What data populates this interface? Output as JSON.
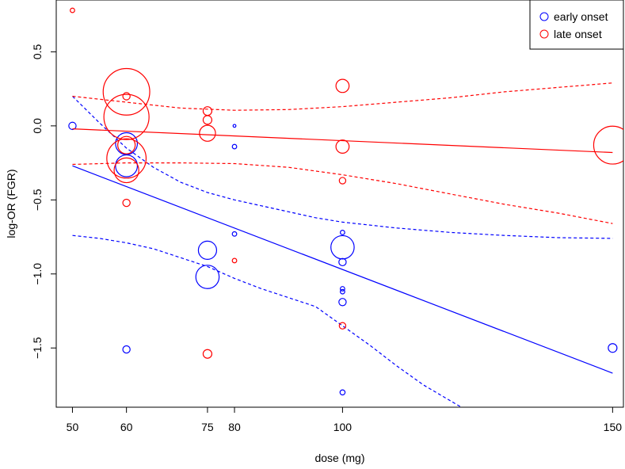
{
  "chart_data": {
    "type": "scatter",
    "title": "",
    "xlabel": "dose (mg)",
    "ylabel": "log-OR (FGR)",
    "xlim": [
      47,
      152
    ],
    "ylim": [
      -1.9,
      0.85
    ],
    "x_ticks": [
      50,
      60,
      75,
      80,
      100,
      150
    ],
    "x_tick_labels": [
      "50",
      "60",
      "75",
      "80",
      "100",
      "150"
    ],
    "y_ticks": [
      -1.5,
      -1.0,
      -0.5,
      0.0,
      0.5
    ],
    "y_tick_labels": [
      "−1.5",
      "−1.0",
      "−0.5",
      "0.0",
      "0.5"
    ],
    "grid": false,
    "legend_position": "top-right",
    "series": [
      {
        "name": "early onset",
        "color": "#0000ff",
        "points": [
          {
            "x": 50,
            "y": 0.0,
            "size": 1
          },
          {
            "x": 60,
            "y": -0.12,
            "size": 3
          },
          {
            "x": 60,
            "y": -0.27,
            "size": 3
          },
          {
            "x": 60,
            "y": -1.51,
            "size": 1
          },
          {
            "x": 75,
            "y": -0.84,
            "size": 2.5
          },
          {
            "x": 75,
            "y": -1.02,
            "size": 3.2
          },
          {
            "x": 80,
            "y": 0.0,
            "size": 0.4
          },
          {
            "x": 80,
            "y": -0.14,
            "size": 0.6
          },
          {
            "x": 80,
            "y": -0.73,
            "size": 0.6
          },
          {
            "x": 100,
            "y": -0.72,
            "size": 0.6
          },
          {
            "x": 100,
            "y": -0.82,
            "size": 3.2
          },
          {
            "x": 100,
            "y": -0.92,
            "size": 1
          },
          {
            "x": 100,
            "y": -1.1,
            "size": 0.6
          },
          {
            "x": 100,
            "y": -1.12,
            "size": 0.6
          },
          {
            "x": 100,
            "y": -1.19,
            "size": 1
          },
          {
            "x": 100,
            "y": -1.8,
            "size": 0.7
          },
          {
            "x": 150,
            "y": -1.5,
            "size": 1.2
          }
        ],
        "fit": {
          "x": [
            50,
            150
          ],
          "y": [
            -0.27,
            -1.67
          ]
        },
        "ci_upper": {
          "x": [
            50,
            55,
            60,
            65,
            70,
            75,
            80,
            85,
            90,
            95,
            100,
            110,
            120,
            130,
            140,
            150
          ],
          "y": [
            0.2,
            0.02,
            -0.15,
            -0.28,
            -0.38,
            -0.45,
            -0.5,
            -0.54,
            -0.58,
            -0.62,
            -0.65,
            -0.69,
            -0.72,
            -0.74,
            -0.755,
            -0.76
          ]
        },
        "ci_lower": {
          "x": [
            50,
            55,
            60,
            65,
            70,
            75,
            80,
            85,
            90,
            95,
            100,
            105,
            110,
            115,
            122
          ],
          "y": [
            -0.74,
            -0.76,
            -0.79,
            -0.83,
            -0.89,
            -0.95,
            -1.03,
            -1.1,
            -1.16,
            -1.22,
            -1.35,
            -1.48,
            -1.62,
            -1.75,
            -1.9
          ]
        }
      },
      {
        "name": "late onset",
        "color": "#ff0000",
        "points": [
          {
            "x": 50,
            "y": 0.78,
            "size": 0.6
          },
          {
            "x": 60,
            "y": 0.2,
            "size": 1
          },
          {
            "x": 60,
            "y": 0.23,
            "size": 6.4
          },
          {
            "x": 60,
            "y": 0.06,
            "size": 6.2
          },
          {
            "x": 60,
            "y": -0.13,
            "size": 2.4
          },
          {
            "x": 60,
            "y": -0.22,
            "size": 5.4
          },
          {
            "x": 60,
            "y": -0.3,
            "size": 3.4
          },
          {
            "x": 60,
            "y": -0.52,
            "size": 1
          },
          {
            "x": 75,
            "y": 0.1,
            "size": 1.2
          },
          {
            "x": 75,
            "y": 0.04,
            "size": 1.2
          },
          {
            "x": 75,
            "y": -0.05,
            "size": 2.2
          },
          {
            "x": 75,
            "y": -1.54,
            "size": 1.2
          },
          {
            "x": 80,
            "y": -0.91,
            "size": 0.6
          },
          {
            "x": 100,
            "y": 0.27,
            "size": 1.8
          },
          {
            "x": 100,
            "y": -0.14,
            "size": 1.8
          },
          {
            "x": 100,
            "y": -0.37,
            "size": 0.9
          },
          {
            "x": 100,
            "y": -1.35,
            "size": 0.9
          },
          {
            "x": 150,
            "y": -0.13,
            "size": 5.2
          }
        ],
        "fit": {
          "x": [
            50,
            150
          ],
          "y": [
            -0.02,
            -0.18
          ]
        },
        "ci_upper": {
          "x": [
            50,
            60,
            70,
            80,
            90,
            100,
            110,
            120,
            130,
            140,
            150
          ],
          "y": [
            0.2,
            0.16,
            0.12,
            0.105,
            0.11,
            0.13,
            0.16,
            0.19,
            0.23,
            0.26,
            0.29
          ]
        },
        "ci_lower": {
          "x": [
            50,
            60,
            70,
            80,
            90,
            100,
            110,
            120,
            130,
            140,
            150
          ],
          "y": [
            -0.26,
            -0.25,
            -0.25,
            -0.255,
            -0.28,
            -0.33,
            -0.39,
            -0.46,
            -0.53,
            -0.59,
            -0.66
          ]
        }
      }
    ]
  }
}
